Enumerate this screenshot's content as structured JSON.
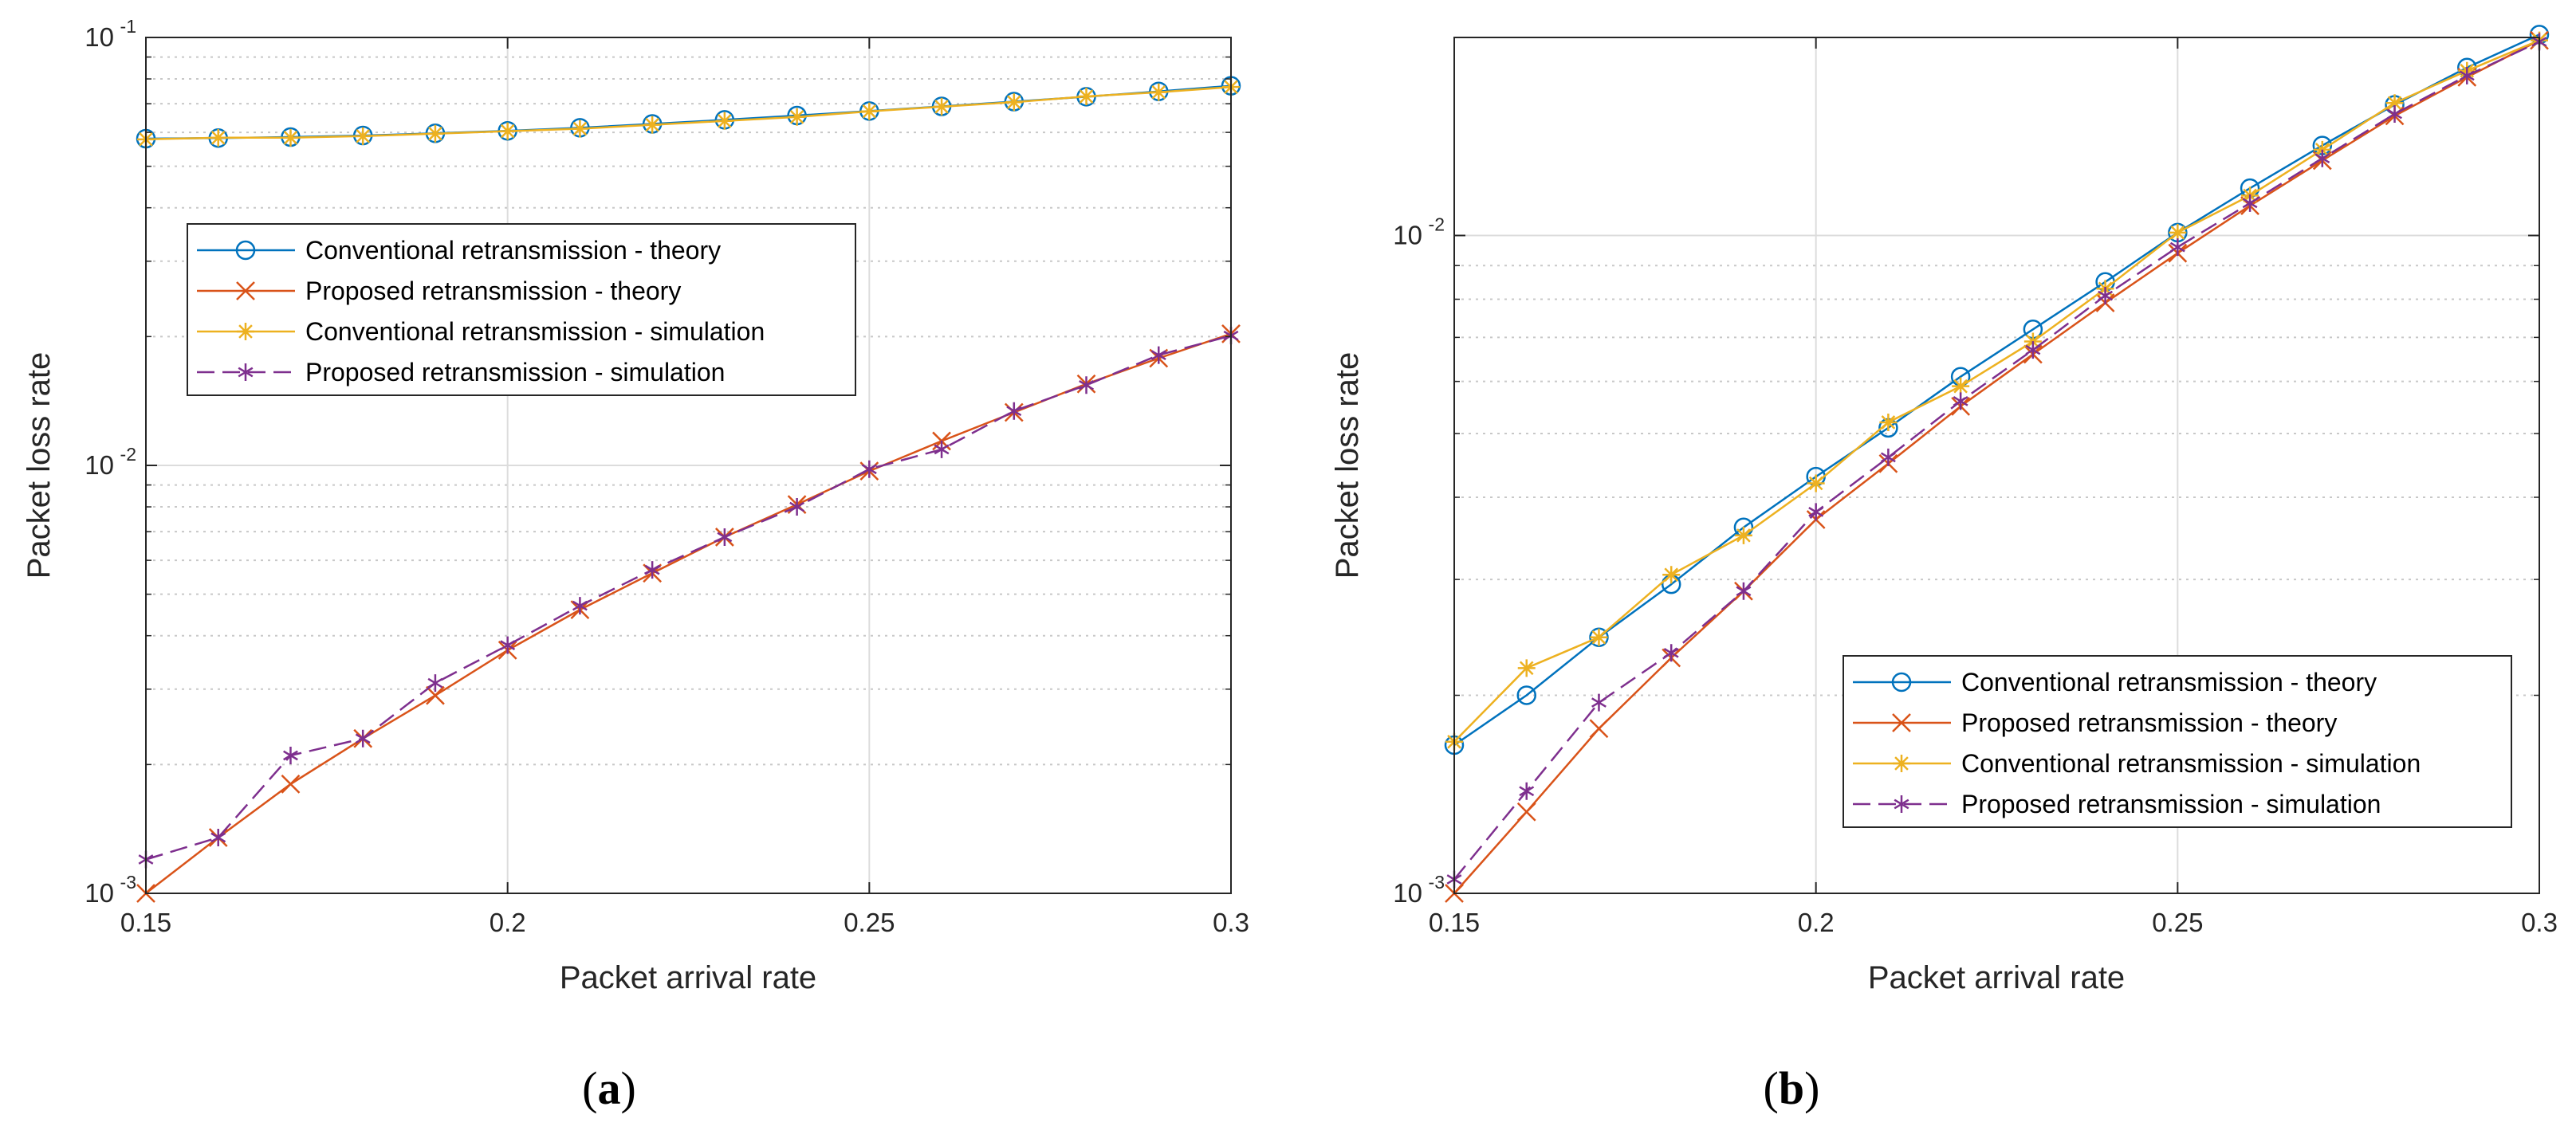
{
  "chart_data": [
    {
      "panel": "a",
      "panel_label": {
        "open": "(",
        "letter": "a",
        "close": ")"
      },
      "type": "line",
      "xlabel": "Packet arrival rate",
      "ylabel": "Packet loss rate",
      "yscale": "log",
      "xlim": [
        0.15,
        0.3
      ],
      "ylim": [
        0.001,
        0.1
      ],
      "xticks": [
        0.15,
        0.2,
        0.25,
        0.3
      ],
      "xtick_labels": [
        "0.15",
        "0.2",
        "0.25",
        "0.3"
      ],
      "ytick_labels": [
        {
          "base": "10",
          "exp": "-3"
        },
        {
          "base": "10",
          "exp": "-2"
        },
        {
          "base": "10",
          "exp": "-1"
        }
      ],
      "grid": true,
      "legend_position": "center-left",
      "x": [
        0.15,
        0.16,
        0.17,
        0.18,
        0.19,
        0.2,
        0.21,
        0.22,
        0.23,
        0.24,
        0.25,
        0.26,
        0.27,
        0.28,
        0.29,
        0.3
      ],
      "series": [
        {
          "name": "Conventional retransmission - theory",
          "color": "#0072BD",
          "marker": "circle",
          "dash": false,
          "values": [
            0.058,
            0.0582,
            0.0585,
            0.059,
            0.0597,
            0.0605,
            0.0615,
            0.0628,
            0.0642,
            0.0657,
            0.0673,
            0.069,
            0.0708,
            0.0727,
            0.0748,
            0.0771
          ]
        },
        {
          "name": "Proposed retransmission - theory",
          "color": "#D95319",
          "marker": "x",
          "dash": false,
          "values": [
            0.001,
            0.00135,
            0.0018,
            0.0023,
            0.0029,
            0.0037,
            0.0046,
            0.0056,
            0.0068,
            0.0081,
            0.0097,
            0.0114,
            0.0133,
            0.0155,
            0.0178,
            0.0203
          ]
        },
        {
          "name": "Conventional retransmission - simulation",
          "color": "#EDB120",
          "marker": "star",
          "dash": false,
          "values": [
            0.0578,
            0.0583,
            0.0583,
            0.0588,
            0.0596,
            0.0604,
            0.0612,
            0.0625,
            0.0638,
            0.0652,
            0.0672,
            0.0689,
            0.0706,
            0.0728,
            0.0745,
            0.0766
          ]
        },
        {
          "name": "Proposed retransmission - simulation",
          "color": "#7E2F8E",
          "marker": "asterisk",
          "dash": true,
          "values": [
            0.0012,
            0.00135,
            0.0021,
            0.0023,
            0.0031,
            0.0038,
            0.0047,
            0.0057,
            0.0068,
            0.008,
            0.0098,
            0.0109,
            0.0134,
            0.0154,
            0.0181,
            0.0201
          ]
        }
      ]
    },
    {
      "panel": "b",
      "panel_label": {
        "open": "(",
        "letter": "b",
        "close": ")"
      },
      "type": "line",
      "xlabel": "Packet arrival rate",
      "ylabel": "Packet loss rate",
      "yscale": "log",
      "xlim": [
        0.15,
        0.3
      ],
      "ylim": [
        0.001,
        0.02
      ],
      "xticks": [
        0.15,
        0.2,
        0.25,
        0.3
      ],
      "xtick_labels": [
        "0.15",
        "0.2",
        "0.25",
        "0.3"
      ],
      "ytick_labels": [
        {
          "base": "10",
          "exp": "-3"
        },
        {
          "base": "10",
          "exp": "-2"
        }
      ],
      "grid": true,
      "legend_position": "bottom-right",
      "x": [
        0.15,
        0.16,
        0.17,
        0.18,
        0.19,
        0.2,
        0.21,
        0.22,
        0.23,
        0.24,
        0.25,
        0.26,
        0.27,
        0.28,
        0.29,
        0.3
      ],
      "series": [
        {
          "name": "Conventional retransmission - theory",
          "color": "#0072BD",
          "marker": "circle",
          "dash": false,
          "values": [
            0.00168,
            0.002,
            0.00245,
            0.00295,
            0.0036,
            0.0043,
            0.0051,
            0.0061,
            0.0072,
            0.0085,
            0.0101,
            0.0118,
            0.0137,
            0.0158,
            0.018,
            0.0202
          ]
        },
        {
          "name": "Proposed retransmission - theory",
          "color": "#D95319",
          "marker": "x",
          "dash": false,
          "values": [
            0.001,
            0.00133,
            0.00178,
            0.00228,
            0.00288,
            0.0037,
            0.0045,
            0.0055,
            0.0066,
            0.0079,
            0.0094,
            0.0111,
            0.013,
            0.0152,
            0.0174,
            0.0198
          ]
        },
        {
          "name": "Conventional retransmission - simulation",
          "color": "#EDB120",
          "marker": "star",
          "dash": false,
          "values": [
            0.0017,
            0.0022,
            0.00245,
            0.00305,
            0.0035,
            0.0042,
            0.0052,
            0.0059,
            0.0069,
            0.0083,
            0.0101,
            0.0115,
            0.0135,
            0.0159,
            0.0178,
            0.0198
          ]
        },
        {
          "name": "Proposed retransmission - simulation",
          "color": "#7E2F8E",
          "marker": "asterisk",
          "dash": true,
          "values": [
            0.00105,
            0.00143,
            0.00195,
            0.00232,
            0.00288,
            0.0038,
            0.0046,
            0.0056,
            0.0067,
            0.0081,
            0.0096,
            0.0112,
            0.0131,
            0.0153,
            0.0175,
            0.0197
          ]
        }
      ]
    }
  ]
}
